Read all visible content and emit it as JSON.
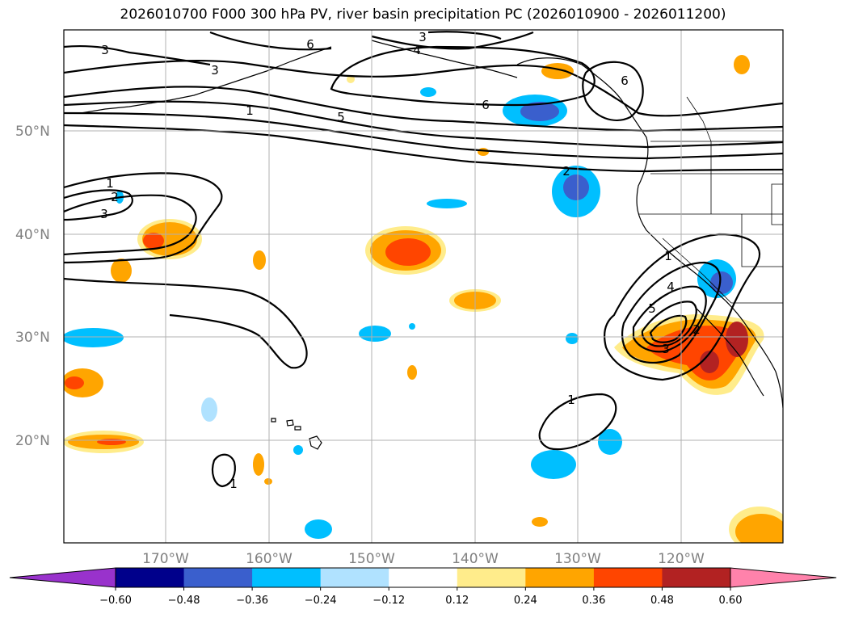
{
  "title": "2026010700 F000 300 hPa PV, river basin precipitation PC (2026010900 - 2026011200)",
  "lat_labels": [
    "50°N",
    "40°N",
    "30°N",
    "20°N"
  ],
  "lon_labels": [
    "170°W",
    "160°W",
    "150°W",
    "140°W",
    "130°W",
    "120°W"
  ],
  "colorbar": {
    "ticks": [
      "−0.60",
      "−0.48",
      "−0.36",
      "−0.24",
      "−0.12",
      "0.12",
      "0.24",
      "0.36",
      "0.48",
      "0.60"
    ],
    "colors": [
      "#9932cc",
      "#00008b",
      "#3a5fcd",
      "#00bfff",
      "#b0e2ff",
      "#ffffff",
      "#ffec8b",
      "#ffa500",
      "#ff4500",
      "#b22222",
      "#ff82ab"
    ]
  },
  "contour_labels": {
    "a": "3",
    "b": "6",
    "c": "3",
    "d": "4",
    "e": "3",
    "f": "1",
    "g": "5",
    "h": "6",
    "i": "6",
    "j": "1",
    "k": "2",
    "l": "3",
    "m": "2",
    "n": "1",
    "o": "4",
    "p": "5",
    "q": "2",
    "r": "3",
    "s": "1",
    "t": "1"
  }
}
